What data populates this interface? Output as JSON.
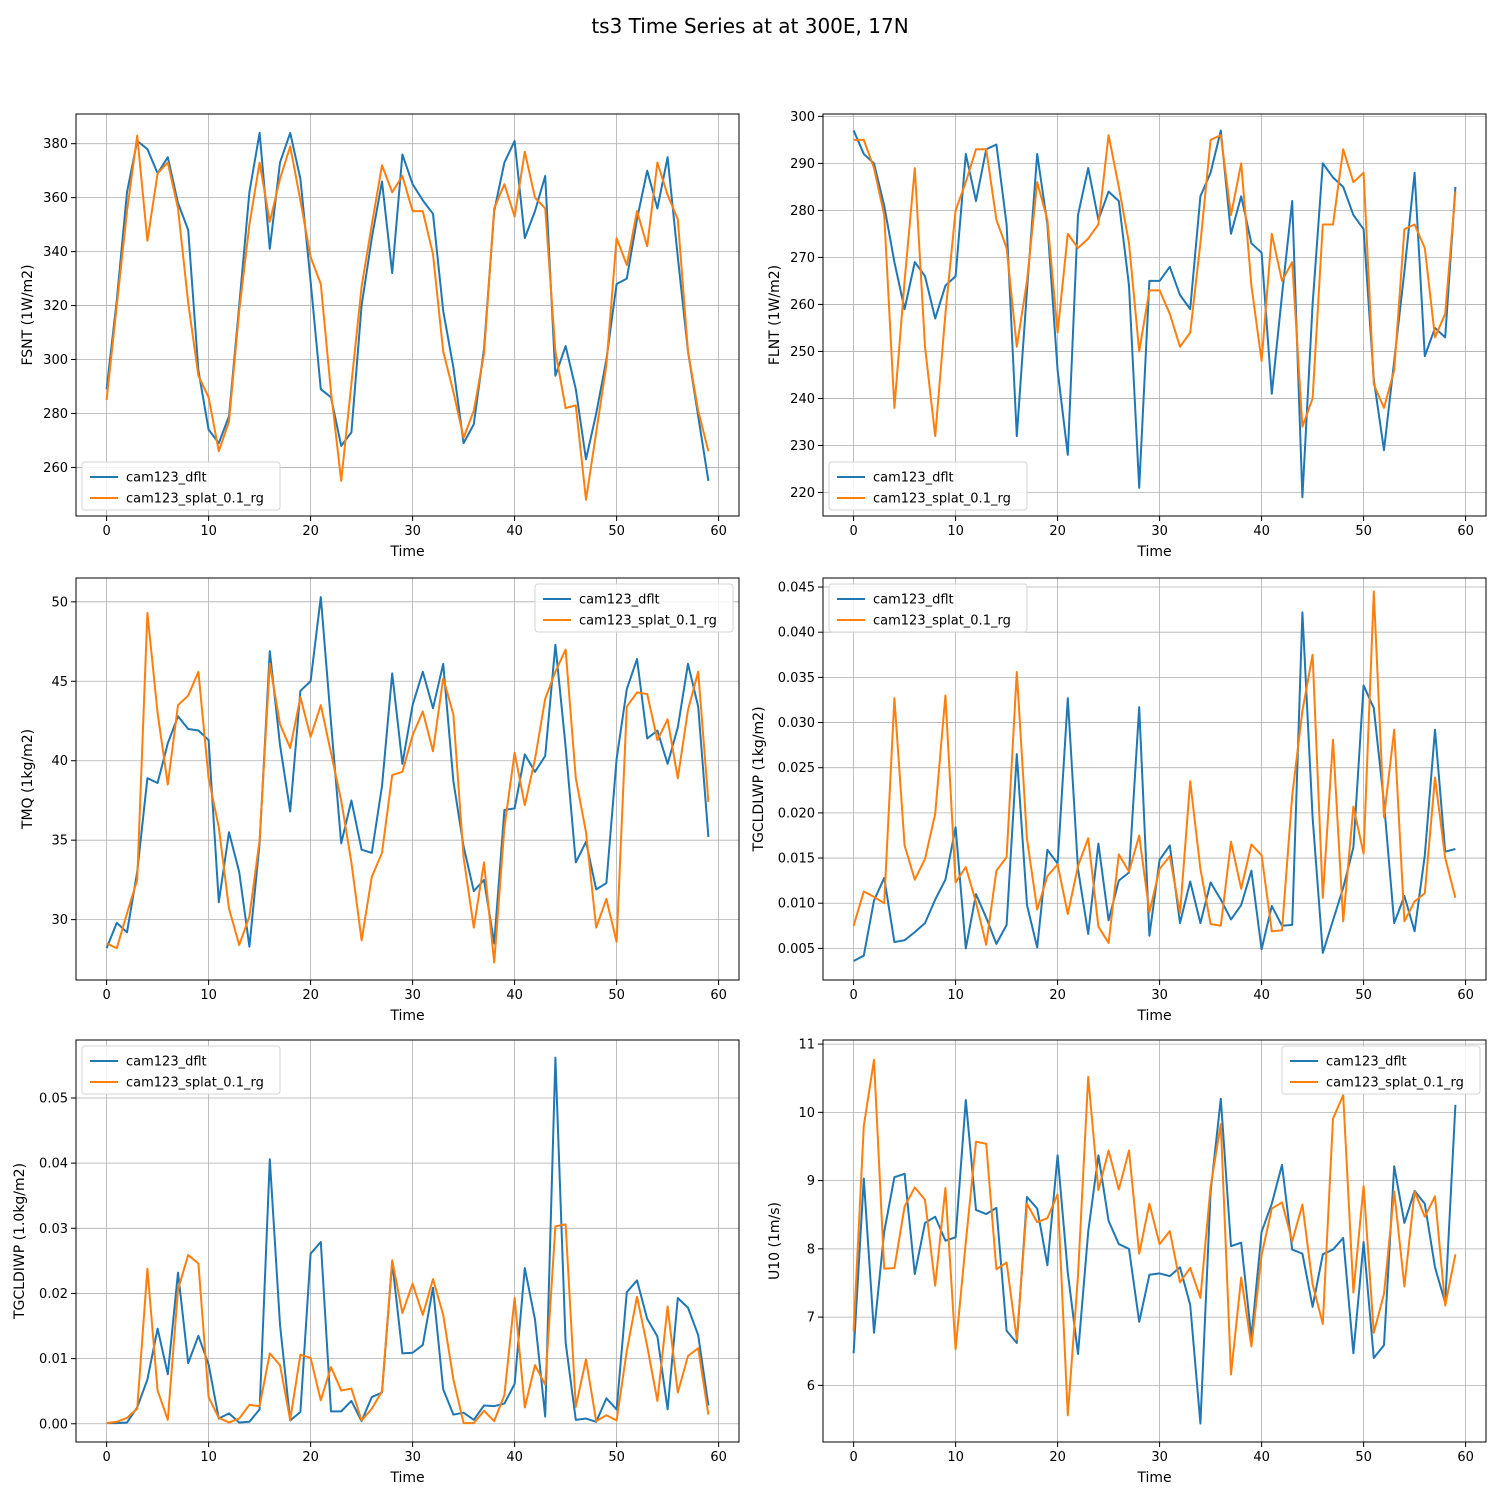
{
  "figure": {
    "title": "ts3 Time Series at at 300E, 17N",
    "colors": {
      "cam123_dflt": "#1f77b4",
      "cam123_splat_0.1_rg": "#ff7f0e",
      "grid": "#b0b0b0"
    }
  },
  "chart_data": [
    {
      "type": "line",
      "xlabel": "Time",
      "ylabel": "FSNT (1W/m2)",
      "xlim": [
        -3,
        62
      ],
      "ylim": [
        242,
        391
      ],
      "xticks": [
        0,
        10,
        20,
        30,
        40,
        50,
        60
      ],
      "yticks": [
        260,
        280,
        300,
        320,
        340,
        360,
        380
      ],
      "tick_labels": [
        "260",
        "280",
        "300",
        "320",
        "340",
        "360",
        "380"
      ],
      "legend": "lower-left",
      "grid": true,
      "series": [
        {
          "name": "cam123_dflt",
          "values": [
            289,
            322,
            362,
            381,
            378,
            369,
            375,
            358,
            348,
            296,
            274,
            269,
            279,
            320,
            362,
            384,
            341,
            373,
            384,
            367,
            329,
            289,
            286,
            268,
            273,
            320,
            345,
            366,
            332,
            376,
            365,
            359,
            354,
            318,
            297,
            269,
            276,
            304,
            355,
            373,
            381,
            345,
            355,
            368,
            294,
            305,
            289,
            263,
            280,
            300,
            328,
            330,
            352,
            370,
            356,
            375,
            338,
            303,
            279,
            255
          ]
        },
        {
          "name": "cam123_splat_0.1_rg",
          "values": [
            285,
            320,
            355,
            383,
            344,
            369,
            373,
            356,
            321,
            294,
            286,
            266,
            277,
            318,
            350,
            373,
            351,
            367,
            379,
            359,
            338,
            328,
            288,
            255,
            291,
            327,
            350,
            372,
            362,
            368,
            355,
            355,
            339,
            303,
            288,
            271,
            281,
            302,
            356,
            365,
            353,
            377,
            360,
            356,
            303,
            282,
            283,
            248,
            273,
            298,
            345,
            335,
            355,
            342,
            373,
            361,
            352,
            303,
            281,
            266
          ]
        }
      ]
    },
    {
      "type": "line",
      "xlabel": "Time",
      "ylabel": "FLNT (1W/m2)",
      "xlim": [
        -3,
        62
      ],
      "ylim": [
        215,
        300.5
      ],
      "xticks": [
        0,
        10,
        20,
        30,
        40,
        50,
        60
      ],
      "yticks": [
        220,
        230,
        240,
        250,
        260,
        270,
        280,
        290,
        300
      ],
      "tick_labels": [
        "220",
        "230",
        "240",
        "250",
        "260",
        "270",
        "280",
        "290",
        "300"
      ],
      "legend": "lower-left",
      "grid": true,
      "series": [
        {
          "name": "cam123_dflt",
          "values": [
            297,
            292,
            290,
            281,
            269,
            259,
            269,
            266,
            257,
            264,
            266,
            292,
            282,
            293,
            294,
            277,
            232,
            263,
            292,
            277,
            246,
            228,
            279,
            289,
            278,
            284,
            282,
            264,
            221,
            265,
            265,
            268,
            262,
            259,
            283,
            288,
            297,
            275,
            283,
            273,
            271,
            241,
            262,
            282,
            219,
            260,
            290,
            287,
            285,
            279,
            276,
            244,
            229,
            248,
            267,
            288,
            249,
            255,
            253,
            285
          ]
        },
        {
          "name": "cam123_splat_0.1_rg",
          "values": [
            295,
            295,
            289,
            279,
            238,
            265,
            289,
            251,
            232,
            258,
            280,
            286,
            293,
            293,
            278,
            272,
            251,
            265,
            286,
            278,
            254,
            275,
            272,
            274,
            277,
            296,
            285,
            273,
            250,
            263,
            263,
            258,
            251,
            254,
            273,
            295,
            296,
            279,
            290,
            264,
            248,
            275,
            265,
            269,
            234,
            240,
            277,
            277,
            293,
            286,
            288,
            243,
            238,
            246,
            276,
            277,
            272,
            253,
            258,
            284
          ]
        }
      ]
    },
    {
      "type": "line",
      "xlabel": "Time",
      "ylabel": "TMQ (1kg/m2)",
      "xlim": [
        -3,
        62
      ],
      "ylim": [
        26.2,
        51.5
      ],
      "xticks": [
        0,
        10,
        20,
        30,
        40,
        50,
        60
      ],
      "yticks": [
        30,
        35,
        40,
        45,
        50
      ],
      "tick_labels": [
        "30",
        "35",
        "40",
        "45",
        "50"
      ],
      "legend": "upper-right",
      "grid": true,
      "series": [
        {
          "name": "cam123_dflt",
          "values": [
            28.2,
            29.8,
            29.2,
            33.0,
            38.9,
            38.6,
            41.1,
            42.8,
            42.0,
            41.9,
            41.3,
            31.1,
            35.5,
            33.0,
            28.3,
            34.8,
            46.9,
            41.0,
            36.8,
            44.4,
            45.0,
            50.3,
            42.4,
            34.8,
            37.5,
            34.4,
            34.2,
            38.4,
            45.5,
            39.8,
            43.5,
            45.6,
            43.3,
            46.1,
            38.7,
            34.6,
            31.8,
            32.5,
            28.5,
            36.9,
            37.0,
            40.4,
            39.3,
            40.3,
            47.3,
            40.9,
            33.6,
            34.9,
            31.9,
            32.3,
            40.1,
            44.5,
            46.4,
            41.4,
            41.9,
            39.8,
            42.1,
            46.1,
            43.4,
            35.2
          ]
        },
        {
          "name": "cam123_splat_0.1_rg",
          "values": [
            28.5,
            28.2,
            30.4,
            32.5,
            49.3,
            43.0,
            38.5,
            43.5,
            44.1,
            45.6,
            38.9,
            35.8,
            30.7,
            28.4,
            30.2,
            35.0,
            46.1,
            42.3,
            40.8,
            44.0,
            41.5,
            43.5,
            40.5,
            37.5,
            33.6,
            28.7,
            32.7,
            34.2,
            39.1,
            39.3,
            41.6,
            43.1,
            40.6,
            45.2,
            42.9,
            33.9,
            29.5,
            33.6,
            27.3,
            35.8,
            40.5,
            37.2,
            40.1,
            43.9,
            45.6,
            47.0,
            38.9,
            35.5,
            29.5,
            31.3,
            28.6,
            43.4,
            44.3,
            44.2,
            41.3,
            42.6,
            38.9,
            43.2,
            45.6,
            37.4
          ]
        }
      ]
    },
    {
      "type": "line",
      "xlabel": "Time",
      "ylabel": "TGCLDLWP (1kg/m2)",
      "xlim": [
        -3,
        62
      ],
      "ylim": [
        0.0015,
        0.046
      ],
      "xticks": [
        0,
        10,
        20,
        30,
        40,
        50,
        60
      ],
      "yticks": [
        0.005,
        0.01,
        0.015,
        0.02,
        0.025,
        0.03,
        0.035,
        0.04,
        0.045
      ],
      "tick_labels": [
        "0.005",
        "0.010",
        "0.015",
        "0.020",
        "0.025",
        "0.030",
        "0.035",
        "0.040",
        "0.045"
      ],
      "legend": "upper-left",
      "grid": true,
      "series": [
        {
          "name": "cam123_dflt",
          "values": [
            0.0036,
            0.0042,
            0.0103,
            0.0128,
            0.0057,
            0.0059,
            0.0068,
            0.0078,
            0.0104,
            0.0126,
            0.0184,
            0.005,
            0.011,
            0.0084,
            0.0055,
            0.0076,
            0.0265,
            0.0098,
            0.0051,
            0.0159,
            0.0144,
            0.0327,
            0.0138,
            0.0066,
            0.0166,
            0.0081,
            0.0125,
            0.0134,
            0.0317,
            0.0064,
            0.0148,
            0.0164,
            0.0078,
            0.0124,
            0.0078,
            0.0123,
            0.0104,
            0.0082,
            0.0098,
            0.0136,
            0.0049,
            0.0097,
            0.0075,
            0.0076,
            0.0422,
            0.0195,
            0.0045,
            0.0081,
            0.0117,
            0.0162,
            0.0341,
            0.0316,
            0.0211,
            0.0078,
            0.0108,
            0.0069,
            0.0153,
            0.0292,
            0.0157,
            0.016
          ]
        },
        {
          "name": "cam123_splat_0.1_rg",
          "values": [
            0.0075,
            0.0113,
            0.0107,
            0.01,
            0.0327,
            0.0164,
            0.0126,
            0.0149,
            0.0199,
            0.033,
            0.0123,
            0.014,
            0.0101,
            0.0054,
            0.0136,
            0.0151,
            0.0356,
            0.0171,
            0.0093,
            0.013,
            0.0143,
            0.0088,
            0.0141,
            0.0172,
            0.0074,
            0.0056,
            0.0154,
            0.0135,
            0.0175,
            0.009,
            0.0138,
            0.0152,
            0.0089,
            0.0235,
            0.0138,
            0.0077,
            0.0075,
            0.0168,
            0.0116,
            0.0165,
            0.0153,
            0.0069,
            0.007,
            0.0219,
            0.0313,
            0.0375,
            0.0106,
            0.0281,
            0.008,
            0.0207,
            0.0155,
            0.0445,
            0.0195,
            0.0292,
            0.008,
            0.0102,
            0.0111,
            0.0239,
            0.015,
            0.0106
          ]
        }
      ]
    },
    {
      "type": "line",
      "xlabel": "Time",
      "ylabel": "TGCLDIWP (1.0kg/m2)",
      "xlim": [
        -3,
        62
      ],
      "ylim": [
        -0.0028,
        0.0589
      ],
      "xticks": [
        0,
        10,
        20,
        30,
        40,
        50,
        60
      ],
      "yticks": [
        0.0,
        0.01,
        0.02,
        0.03,
        0.04,
        0.05
      ],
      "tick_labels": [
        "0.00",
        "0.01",
        "0.02",
        "0.03",
        "0.04",
        "0.05"
      ],
      "legend": "upper-left",
      "grid": true,
      "series": [
        {
          "name": "cam123_dflt",
          "values": [
            0.0001,
            0.0001,
            0.0002,
            0.0025,
            0.0068,
            0.0146,
            0.0076,
            0.0232,
            0.0093,
            0.0135,
            0.0091,
            0.0008,
            0.0016,
            0.0002,
            0.0003,
            0.0022,
            0.0406,
            0.0152,
            0.0005,
            0.0018,
            0.0261,
            0.0279,
            0.0019,
            0.0019,
            0.0035,
            0.0004,
            0.0041,
            0.0048,
            0.0248,
            0.0108,
            0.0109,
            0.0121,
            0.0209,
            0.0053,
            0.0014,
            0.0017,
            0.0006,
            0.0028,
            0.0027,
            0.0031,
            0.0061,
            0.0239,
            0.016,
            0.0011,
            0.0562,
            0.0125,
            0.0006,
            0.0008,
            0.0003,
            0.0039,
            0.0022,
            0.0202,
            0.022,
            0.0161,
            0.0134,
            0.0022,
            0.0193,
            0.0178,
            0.0136,
            0.0028
          ]
        },
        {
          "name": "cam123_splat_0.1_rg",
          "values": [
            0.0001,
            0.0003,
            0.0009,
            0.0023,
            0.0238,
            0.0051,
            0.0006,
            0.0206,
            0.0259,
            0.0246,
            0.0041,
            0.0009,
            0.0002,
            0.0008,
            0.0029,
            0.0027,
            0.0108,
            0.009,
            0.0006,
            0.0106,
            0.0101,
            0.0036,
            0.0087,
            0.0051,
            0.0054,
            0.0005,
            0.0023,
            0.005,
            0.0251,
            0.017,
            0.0215,
            0.0167,
            0.0222,
            0.0167,
            0.0068,
            0.0001,
            0.0001,
            0.002,
            0.0004,
            0.0044,
            0.0193,
            0.0025,
            0.009,
            0.006,
            0.0303,
            0.0306,
            0.0026,
            0.0099,
            0.0004,
            0.0013,
            0.0005,
            0.0112,
            0.0195,
            0.0119,
            0.0035,
            0.018,
            0.0048,
            0.0104,
            0.0116,
            0.0014
          ]
        }
      ]
    },
    {
      "type": "line",
      "xlabel": "Time",
      "ylabel": "U10 (1m/s)",
      "xlim": [
        -3,
        62
      ],
      "ylim": [
        5.17,
        11.06
      ],
      "xticks": [
        0,
        10,
        20,
        30,
        40,
        50,
        60
      ],
      "yticks": [
        6,
        7,
        8,
        9,
        10,
        11
      ],
      "tick_labels": [
        "6",
        "7",
        "8",
        "9",
        "10",
        "11"
      ],
      "legend": "upper-right",
      "grid": true,
      "series": [
        {
          "name": "cam123_dflt",
          "values": [
            6.47,
            9.03,
            6.77,
            8.25,
            9.05,
            9.1,
            7.63,
            8.38,
            8.47,
            8.12,
            8.17,
            10.18,
            8.57,
            8.51,
            8.6,
            6.8,
            6.62,
            8.76,
            8.59,
            7.76,
            9.37,
            7.65,
            6.46,
            8.25,
            9.37,
            8.41,
            8.07,
            8.0,
            6.93,
            7.62,
            7.64,
            7.6,
            7.73,
            7.18,
            5.44,
            8.83,
            10.2,
            8.04,
            8.09,
            6.7,
            8.25,
            8.66,
            9.23,
            7.99,
            7.93,
            7.15,
            7.92,
            7.99,
            8.16,
            6.47,
            8.1,
            6.4,
            6.59,
            9.21,
            8.38,
            8.85,
            8.66,
            7.73,
            7.21,
            10.11
          ]
        },
        {
          "name": "cam123_splat_0.1_rg",
          "values": [
            6.79,
            9.8,
            10.77,
            7.71,
            7.72,
            8.62,
            8.9,
            8.72,
            7.46,
            8.89,
            6.53,
            8.1,
            9.57,
            9.54,
            7.7,
            7.8,
            6.67,
            8.66,
            8.39,
            8.45,
            8.8,
            5.56,
            7.61,
            10.52,
            8.86,
            9.44,
            8.87,
            9.44,
            7.93,
            8.66,
            8.07,
            8.26,
            7.51,
            7.72,
            7.28,
            8.91,
            9.83,
            6.16,
            7.58,
            6.57,
            7.91,
            8.59,
            8.68,
            8.11,
            8.65,
            7.48,
            6.9,
            9.91,
            10.25,
            7.36,
            8.92,
            6.77,
            7.34,
            8.84,
            7.45,
            8.84,
            8.47,
            8.77,
            7.17,
            7.92
          ]
        }
      ]
    }
  ]
}
